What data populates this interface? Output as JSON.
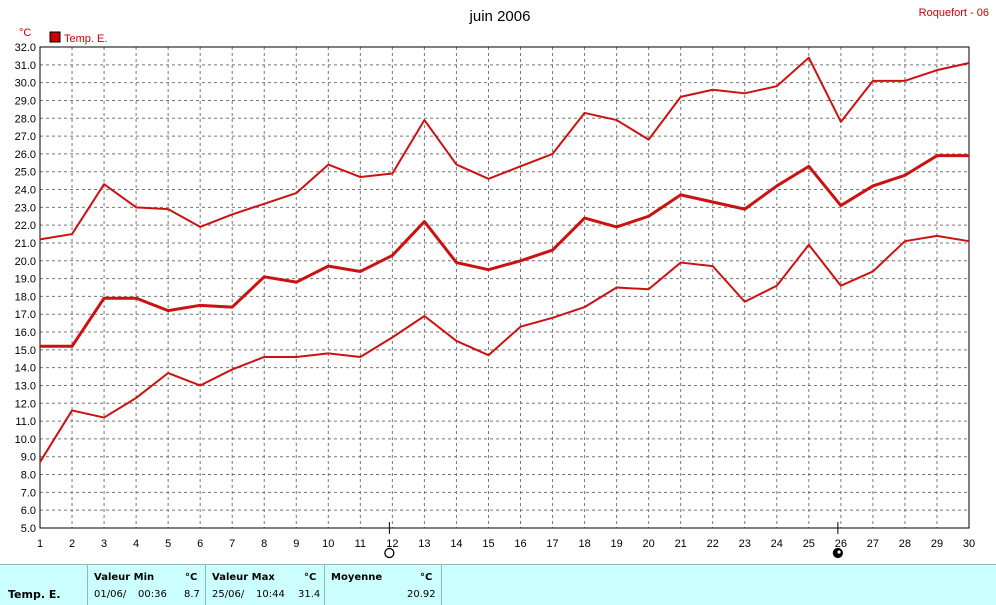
{
  "chart_data": {
    "type": "line",
    "title": "juin 2006",
    "station": "Roquefort - 06",
    "unit_label": "°C",
    "legend": "Temp. E.",
    "legend_color": "#cc0000",
    "line_color": "#cc1111",
    "x": [
      1,
      2,
      3,
      4,
      5,
      6,
      7,
      8,
      9,
      10,
      11,
      12,
      13,
      14,
      15,
      16,
      17,
      18,
      19,
      20,
      21,
      22,
      23,
      24,
      25,
      26,
      27,
      28,
      29,
      30
    ],
    "xlim": [
      1,
      30
    ],
    "ylim": [
      5.0,
      32.0
    ],
    "yticks": [
      "5.0",
      "6.0",
      "7.0",
      "8.0",
      "9.0",
      "10.0",
      "11.0",
      "12.0",
      "13.0",
      "14.0",
      "15.0",
      "16.0",
      "17.0",
      "18.0",
      "19.0",
      "20.0",
      "21.0",
      "22.0",
      "23.0",
      "24.0",
      "25.0",
      "26.0",
      "27.0",
      "28.0",
      "29.0",
      "30.0",
      "31.0",
      "32.0"
    ],
    "grid": true,
    "series": [
      {
        "kind": "max",
        "values": [
          21.2,
          21.5,
          24.3,
          23.0,
          22.9,
          21.9,
          22.6,
          23.2,
          23.8,
          25.4,
          24.7,
          24.9,
          27.9,
          25.4,
          24.6,
          25.3,
          26.0,
          28.3,
          27.9,
          26.8,
          29.2,
          29.6,
          29.4,
          29.8,
          31.4,
          27.8,
          30.1,
          30.1,
          30.7,
          31.1
        ]
      },
      {
        "kind": "mean",
        "values": [
          15.2,
          15.2,
          17.9,
          17.9,
          17.2,
          17.5,
          17.4,
          19.1,
          18.8,
          19.7,
          19.4,
          20.3,
          22.2,
          19.9,
          19.5,
          20.0,
          20.6,
          22.4,
          21.9,
          22.5,
          23.7,
          23.3,
          22.9,
          24.2,
          25.3,
          23.1,
          24.2,
          24.8,
          25.9,
          25.9
        ]
      },
      {
        "kind": "min",
        "values": [
          8.7,
          11.6,
          11.2,
          12.3,
          13.7,
          13.0,
          13.9,
          14.6,
          14.6,
          14.8,
          14.6,
          15.7,
          16.9,
          15.5,
          14.7,
          16.3,
          16.8,
          17.4,
          18.5,
          18.4,
          19.9,
          19.7,
          17.7,
          18.6,
          20.9,
          18.6,
          19.4,
          21.1,
          21.4,
          21.1
        ]
      }
    ],
    "moon_phases": [
      {
        "day": 12,
        "phase": "full-moon"
      },
      {
        "day": 26,
        "phase": "new-moon"
      }
    ]
  },
  "footer": {
    "row_label": "Temp. E.",
    "min": {
      "label": "Valeur Min",
      "unit": "°C",
      "date": "01/06/",
      "time": "00:36",
      "value": "8.7"
    },
    "max": {
      "label": "Valeur Max",
      "unit": "°C",
      "date": "25/06/",
      "time": "10:44",
      "value": "31.4"
    },
    "mean": {
      "label": "Moyenne",
      "unit": "°C",
      "value": "20.92"
    }
  }
}
